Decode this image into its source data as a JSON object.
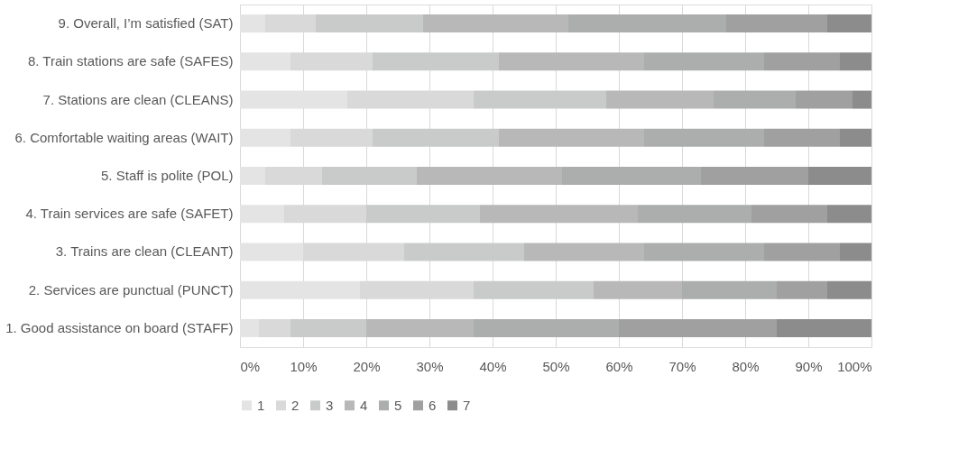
{
  "chart_data": {
    "type": "bar",
    "orientation": "horizontal",
    "stacked": true,
    "categories": [
      "9. Overall, I’m satisfied (SAT)",
      "8. Train stations are safe (SAFES)",
      "7. Stations are clean (CLEANS)",
      "6. Comfortable waiting areas (WAIT)",
      "5. Staff is polite (POL)",
      "4. Train services are safe (SAFET)",
      "3. Trains are clean (CLEANT)",
      "2. Services are punctual (PUNCT)",
      "1. Good assistance on board (STAFF)"
    ],
    "series": [
      {
        "name": "1",
        "color": "#e4e4e4",
        "values": [
          4,
          8,
          17,
          8,
          4,
          7,
          10,
          19,
          3
        ]
      },
      {
        "name": "2",
        "color": "#d9d9d9",
        "values": [
          8,
          13,
          20,
          13,
          9,
          13,
          16,
          18,
          5
        ]
      },
      {
        "name": "3",
        "color": "#c9cbcb",
        "values": [
          17,
          20,
          21,
          20,
          15,
          18,
          19,
          19,
          12
        ]
      },
      {
        "name": "4",
        "color": "#b8b8b8",
        "values": [
          23,
          23,
          17,
          23,
          23,
          25,
          19,
          14,
          17
        ]
      },
      {
        "name": "5",
        "color": "#acaeae",
        "values": [
          25,
          19,
          13,
          19,
          22,
          18,
          19,
          15,
          23
        ]
      },
      {
        "name": "6",
        "color": "#a0a0a0",
        "values": [
          16,
          12,
          9,
          12,
          17,
          12,
          12,
          8,
          25
        ]
      },
      {
        "name": "7",
        "color": "#8c8c8c",
        "values": [
          7,
          5,
          3,
          5,
          10,
          7,
          5,
          7,
          15
        ]
      }
    ],
    "xlim": [
      0,
      100
    ],
    "xticks": [
      {
        "value": 0,
        "label": "0%"
      },
      {
        "value": 10,
        "label": "10%"
      },
      {
        "value": 20,
        "label": "20%"
      },
      {
        "value": 30,
        "label": "30%"
      },
      {
        "value": 40,
        "label": "40%"
      },
      {
        "value": 50,
        "label": "50%"
      },
      {
        "value": 60,
        "label": "60%"
      },
      {
        "value": 70,
        "label": "70%"
      },
      {
        "value": 80,
        "label": "80%"
      },
      {
        "value": 90,
        "label": "90%"
      },
      {
        "value": 100,
        "label": "100%"
      }
    ],
    "grid": "x",
    "legend": "bottom"
  }
}
